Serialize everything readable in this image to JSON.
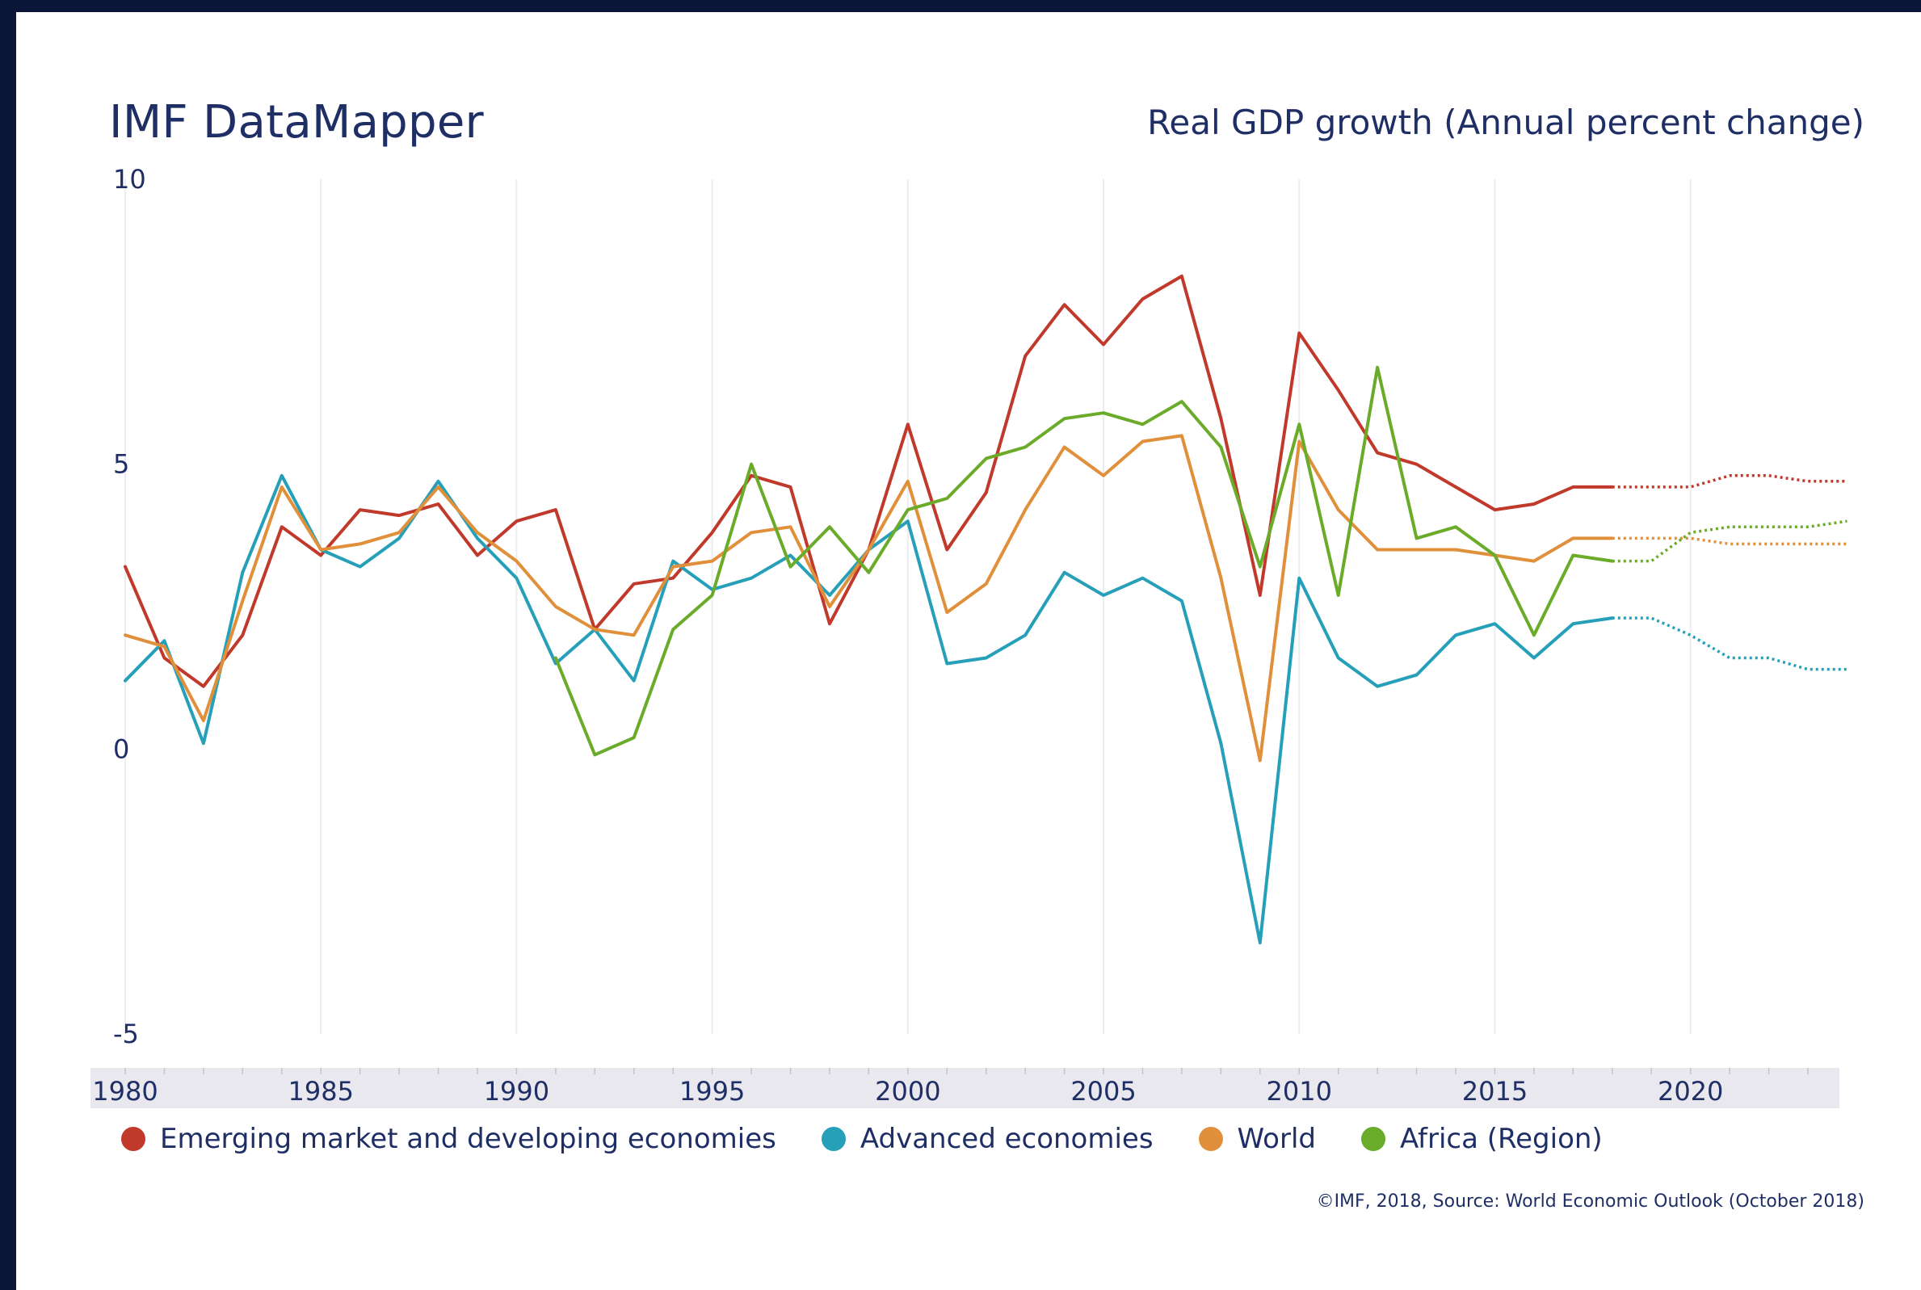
{
  "header": {
    "brand": "IMF DataMapper",
    "title": "Real GDP growth (Annual percent change)"
  },
  "source": "©IMF, 2018, Source: World Economic Outlook (October 2018)",
  "colors": {
    "background": "#0b1639",
    "panel": "#ffffff",
    "text": "#1f2f66",
    "axis_band": "#e8e8ee",
    "grid": "#ececf2"
  },
  "chart_data": {
    "type": "line",
    "title": "Real GDP growth (Annual percent change)",
    "xlabel": "",
    "ylabel": "",
    "xlim": [
      1980,
      2023
    ],
    "ylim": [
      -5,
      10
    ],
    "grid": "vertical",
    "legend": "bottom",
    "x_ticks": [
      1980,
      1985,
      1990,
      1995,
      2000,
      2005,
      2010,
      2015,
      2020
    ],
    "x_tick_labels": [
      "1980",
      "1985",
      "1990",
      "1995",
      "2000",
      "2005",
      "2010",
      "2015",
      "2020"
    ],
    "y_ticks": [
      10,
      5,
      0,
      -5
    ],
    "y_tick_labels": [
      "10",
      "5",
      "0",
      "-5"
    ],
    "projection_start": 2018,
    "series": [
      {
        "name": "Emerging market and developing economies",
        "color": "#c0392b",
        "start_year": 1980,
        "values": [
          3.2,
          1.6,
          1.1,
          2.0,
          3.9,
          3.4,
          4.2,
          4.1,
          4.3,
          3.4,
          4.0,
          4.2,
          2.1,
          2.9,
          3.0,
          3.8,
          4.8,
          4.6,
          2.2,
          3.5,
          5.7,
          3.5,
          4.5,
          6.9,
          7.8,
          7.1,
          7.9,
          8.3,
          5.8,
          2.7,
          7.3,
          6.3,
          5.2,
          5.0,
          4.6,
          4.2,
          4.3,
          4.6,
          4.6,
          4.6,
          4.6,
          4.8,
          4.8,
          4.7,
          4.7
        ]
      },
      {
        "name": "Advanced economies",
        "color": "#26a0b9",
        "start_year": 1980,
        "values": [
          1.2,
          1.9,
          0.1,
          3.1,
          4.8,
          3.5,
          3.2,
          3.7,
          4.7,
          3.7,
          3.0,
          1.5,
          2.1,
          1.2,
          3.3,
          2.8,
          3.0,
          3.4,
          2.7,
          3.5,
          4.0,
          1.5,
          1.6,
          2.0,
          3.1,
          2.7,
          3.0,
          2.6,
          0.1,
          -3.4,
          3.0,
          1.6,
          1.1,
          1.3,
          2.0,
          2.2,
          1.6,
          2.2,
          2.3,
          2.3,
          2.0,
          1.6,
          1.6,
          1.4,
          1.4
        ]
      },
      {
        "name": "World",
        "color": "#e0903a",
        "start_year": 1980,
        "values": [
          2.0,
          1.8,
          0.5,
          2.6,
          4.6,
          3.5,
          3.6,
          3.8,
          4.6,
          3.8,
          3.3,
          2.5,
          2.1,
          2.0,
          3.2,
          3.3,
          3.8,
          3.9,
          2.5,
          3.5,
          4.7,
          2.4,
          2.9,
          4.2,
          5.3,
          4.8,
          5.4,
          5.5,
          3.0,
          -0.2,
          5.4,
          4.2,
          3.5,
          3.5,
          3.5,
          3.4,
          3.3,
          3.7,
          3.7,
          3.7,
          3.7,
          3.6,
          3.6,
          3.6,
          3.6
        ]
      },
      {
        "name": "Africa (Region)",
        "color": "#6bab2a",
        "start_year": 1991,
        "values": [
          1.6,
          -0.1,
          0.2,
          2.1,
          2.7,
          5.0,
          3.2,
          3.9,
          3.1,
          4.2,
          4.4,
          5.1,
          5.3,
          5.8,
          5.9,
          5.7,
          6.1,
          5.3,
          3.2,
          5.7,
          2.7,
          6.7,
          3.7,
          3.9,
          3.4,
          2.0,
          3.4,
          3.3,
          3.3,
          3.8,
          3.9,
          3.9,
          3.9,
          4.0
        ]
      }
    ]
  }
}
